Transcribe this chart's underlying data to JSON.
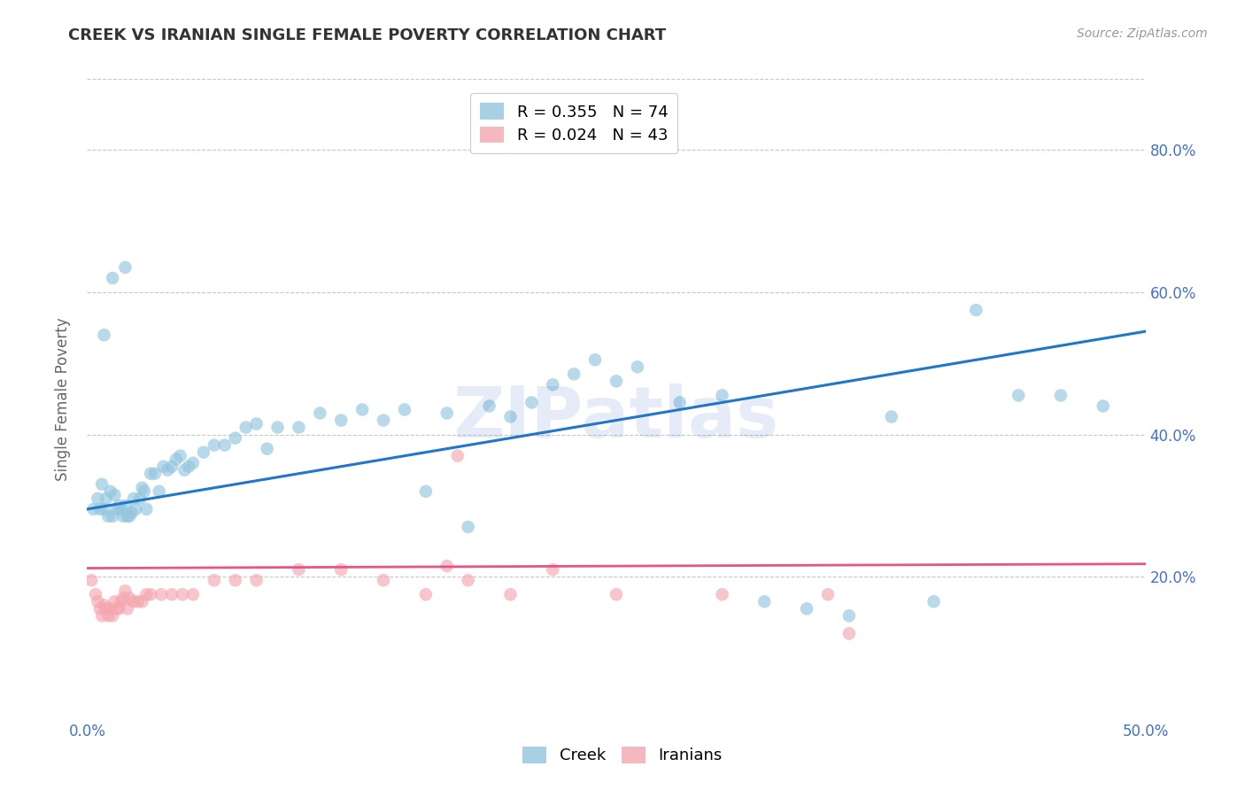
{
  "title": "CREEK VS IRANIAN SINGLE FEMALE POVERTY CORRELATION CHART",
  "source": "Source: ZipAtlas.com",
  "ylabel": "Single Female Poverty",
  "xlim": [
    0.0,
    0.5
  ],
  "ylim": [
    0.0,
    0.9
  ],
  "x_ticks": [
    0.0,
    0.1,
    0.2,
    0.3,
    0.4,
    0.5
  ],
  "x_tick_labels": [
    "0.0%",
    "",
    "",
    "",
    "",
    "50.0%"
  ],
  "y_ticks": [
    0.2,
    0.4,
    0.6,
    0.8
  ],
  "y_tick_labels": [
    "20.0%",
    "40.0%",
    "60.0%",
    "80.0%"
  ],
  "creek_color": "#92c5de",
  "iranian_color": "#f4a6b0",
  "creek_line_color": "#2176c7",
  "iranian_line_color": "#e8538a",
  "creek_R": 0.355,
  "creek_N": 74,
  "iranian_R": 0.024,
  "iranian_N": 43,
  "background_color": "#ffffff",
  "grid_color": "#c8c8c8",
  "watermark": "ZIPatlas",
  "title_color": "#333333",
  "tick_color": "#4472c4",
  "creek_line_x0": 0.0,
  "creek_line_y0": 0.295,
  "creek_line_x1": 0.5,
  "creek_line_y1": 0.545,
  "iranian_line_x0": 0.0,
  "iranian_line_y0": 0.212,
  "iranian_line_x1": 0.5,
  "iranian_line_y1": 0.218,
  "creek_scatter_x": [
    0.003,
    0.005,
    0.006,
    0.007,
    0.008,
    0.009,
    0.01,
    0.011,
    0.012,
    0.013,
    0.014,
    0.015,
    0.016,
    0.017,
    0.018,
    0.019,
    0.02,
    0.021,
    0.022,
    0.023,
    0.025,
    0.026,
    0.027,
    0.028,
    0.03,
    0.032,
    0.034,
    0.036,
    0.038,
    0.04,
    0.042,
    0.044,
    0.046,
    0.048,
    0.05,
    0.055,
    0.06,
    0.065,
    0.07,
    0.075,
    0.08,
    0.085,
    0.09,
    0.1,
    0.11,
    0.12,
    0.13,
    0.14,
    0.15,
    0.16,
    0.17,
    0.18,
    0.19,
    0.2,
    0.21,
    0.22,
    0.23,
    0.24,
    0.25,
    0.26,
    0.28,
    0.3,
    0.32,
    0.34,
    0.36,
    0.38,
    0.4,
    0.42,
    0.44,
    0.46,
    0.008,
    0.012,
    0.018,
    0.48
  ],
  "creek_scatter_y": [
    0.295,
    0.31,
    0.295,
    0.33,
    0.295,
    0.31,
    0.285,
    0.32,
    0.285,
    0.315,
    0.295,
    0.3,
    0.295,
    0.285,
    0.3,
    0.285,
    0.285,
    0.29,
    0.31,
    0.295,
    0.31,
    0.325,
    0.32,
    0.295,
    0.345,
    0.345,
    0.32,
    0.355,
    0.35,
    0.355,
    0.365,
    0.37,
    0.35,
    0.355,
    0.36,
    0.375,
    0.385,
    0.385,
    0.395,
    0.41,
    0.415,
    0.38,
    0.41,
    0.41,
    0.43,
    0.42,
    0.435,
    0.42,
    0.435,
    0.32,
    0.43,
    0.27,
    0.44,
    0.425,
    0.445,
    0.47,
    0.485,
    0.505,
    0.475,
    0.495,
    0.445,
    0.455,
    0.165,
    0.155,
    0.145,
    0.425,
    0.165,
    0.575,
    0.455,
    0.455,
    0.54,
    0.62,
    0.635,
    0.44
  ],
  "iranian_scatter_x": [
    0.002,
    0.004,
    0.005,
    0.006,
    0.007,
    0.008,
    0.009,
    0.01,
    0.011,
    0.012,
    0.013,
    0.014,
    0.015,
    0.016,
    0.017,
    0.018,
    0.019,
    0.02,
    0.022,
    0.024,
    0.026,
    0.028,
    0.03,
    0.035,
    0.04,
    0.045,
    0.05,
    0.06,
    0.07,
    0.08,
    0.1,
    0.12,
    0.14,
    0.16,
    0.18,
    0.2,
    0.22,
    0.25,
    0.3,
    0.35,
    0.17,
    0.175,
    0.36
  ],
  "iranian_scatter_y": [
    0.195,
    0.175,
    0.165,
    0.155,
    0.145,
    0.16,
    0.155,
    0.145,
    0.155,
    0.145,
    0.165,
    0.155,
    0.155,
    0.165,
    0.17,
    0.18,
    0.155,
    0.17,
    0.165,
    0.165,
    0.165,
    0.175,
    0.175,
    0.175,
    0.175,
    0.175,
    0.175,
    0.195,
    0.195,
    0.195,
    0.21,
    0.21,
    0.195,
    0.175,
    0.195,
    0.175,
    0.21,
    0.175,
    0.175,
    0.175,
    0.215,
    0.37,
    0.12
  ]
}
